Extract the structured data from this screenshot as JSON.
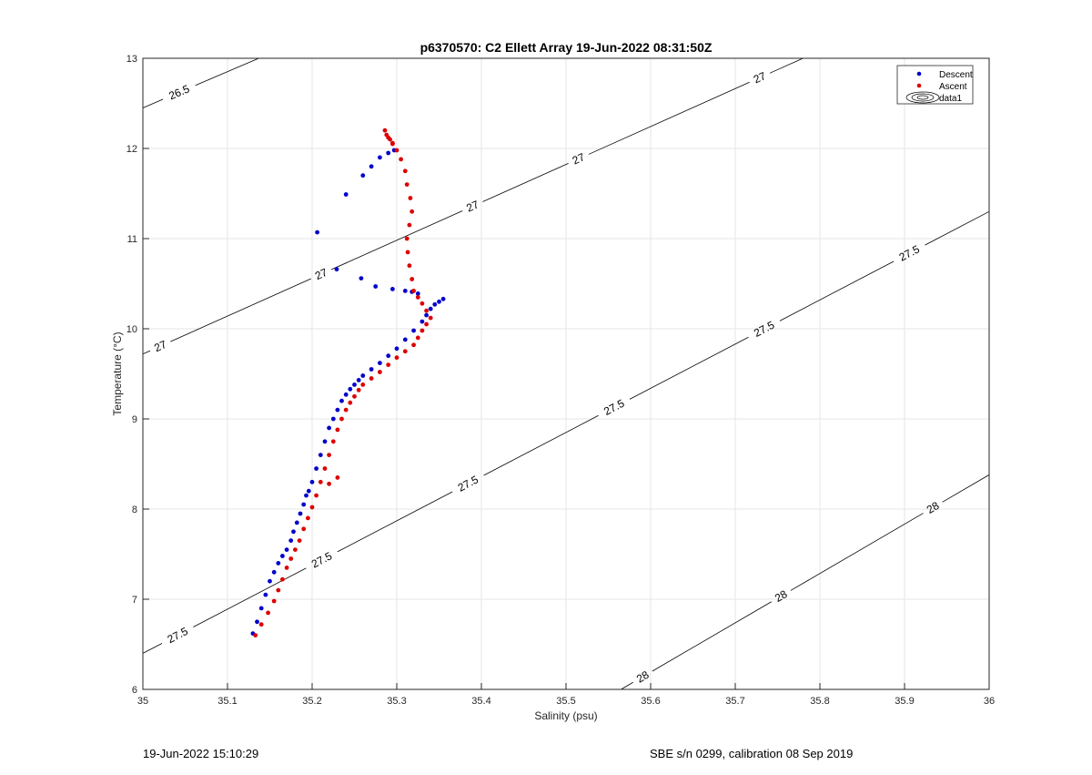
{
  "chart_data": {
    "type": "scatter",
    "title": "p6370570: C2 Ellett Array 19-Jun-2022 08:31:50Z",
    "xlabel": "Salinity (psu)",
    "ylabel": "Temperature (°C)",
    "xlim": [
      35,
      36
    ],
    "ylim": [
      6,
      13
    ],
    "x_ticks": [
      35,
      35.1,
      35.2,
      35.3,
      35.4,
      35.5,
      35.6,
      35.7,
      35.8,
      35.9,
      36
    ],
    "x_tick_labels": [
      "35",
      "35.1",
      "35.2",
      "35.3",
      "35.4",
      "35.5",
      "35.6",
      "35.7",
      "35.8",
      "35.9",
      "36"
    ],
    "y_ticks": [
      6,
      7,
      8,
      9,
      10,
      11,
      12,
      13
    ],
    "y_tick_labels": [
      "6",
      "7",
      "8",
      "9",
      "10",
      "11",
      "12",
      "13"
    ],
    "grid": true,
    "legend": {
      "position": "top-right",
      "entries": [
        "Descent",
        "Ascent",
        "data1"
      ]
    },
    "series": [
      {
        "name": "Descent",
        "color": "#0000cc",
        "x": [
          35.13,
          35.135,
          35.14,
          35.145,
          35.15,
          35.155,
          35.16,
          35.165,
          35.17,
          35.175,
          35.178,
          35.182,
          35.186,
          35.19,
          35.193,
          35.196,
          35.2,
          35.205,
          35.21,
          35.215,
          35.22,
          35.225,
          35.23,
          35.235,
          35.24,
          35.245,
          35.25,
          35.255,
          35.26,
          35.27,
          35.28,
          35.29,
          35.3,
          35.31,
          35.32,
          35.33,
          35.335,
          35.34,
          35.345,
          35.35,
          35.355,
          35.206,
          35.24,
          35.26,
          35.27,
          35.28,
          35.29,
          35.297,
          35.229,
          35.258,
          35.275,
          35.295,
          35.31,
          35.318,
          35.325
        ],
        "y": [
          6.62,
          6.75,
          6.9,
          7.05,
          7.2,
          7.3,
          7.4,
          7.48,
          7.55,
          7.65,
          7.75,
          7.85,
          7.95,
          8.05,
          8.15,
          8.2,
          8.3,
          8.45,
          8.6,
          8.75,
          8.9,
          9.0,
          9.1,
          9.2,
          9.27,
          9.33,
          9.38,
          9.43,
          9.48,
          9.55,
          9.62,
          9.7,
          9.78,
          9.88,
          9.98,
          10.08,
          10.15,
          10.22,
          10.27,
          10.3,
          10.33,
          11.07,
          11.49,
          11.7,
          11.8,
          11.9,
          11.95,
          11.98,
          10.66,
          10.56,
          10.47,
          10.44,
          10.42,
          10.41,
          10.39
        ]
      },
      {
        "name": "Ascent",
        "color": "#dd0000",
        "x": [
          35.133,
          35.14,
          35.148,
          35.155,
          35.16,
          35.165,
          35.17,
          35.175,
          35.18,
          35.185,
          35.19,
          35.195,
          35.2,
          35.205,
          35.21,
          35.215,
          35.22,
          35.225,
          35.23,
          35.235,
          35.24,
          35.245,
          35.25,
          35.255,
          35.26,
          35.27,
          35.28,
          35.29,
          35.3,
          35.31,
          35.32,
          35.325,
          35.33,
          35.335,
          35.34,
          35.335,
          35.33,
          35.325,
          35.32,
          35.318,
          35.315,
          35.313,
          35.312,
          35.315,
          35.318,
          35.316,
          35.312,
          35.31,
          35.305,
          35.3,
          35.295,
          35.292,
          35.288,
          35.286,
          35.29,
          35.295,
          35.23,
          35.22
        ],
        "y": [
          6.6,
          6.72,
          6.85,
          6.98,
          7.1,
          7.22,
          7.35,
          7.45,
          7.55,
          7.65,
          7.78,
          7.9,
          8.02,
          8.15,
          8.3,
          8.45,
          8.6,
          8.75,
          8.88,
          9.0,
          9.1,
          9.18,
          9.25,
          9.32,
          9.38,
          9.45,
          9.52,
          9.6,
          9.68,
          9.75,
          9.82,
          9.9,
          9.98,
          10.05,
          10.12,
          10.2,
          10.28,
          10.35,
          10.42,
          10.55,
          10.7,
          10.85,
          11.0,
          11.15,
          11.3,
          11.45,
          11.6,
          11.75,
          11.88,
          11.98,
          12.05,
          12.1,
          12.15,
          12.2,
          12.12,
          12.06,
          8.35,
          8.28
        ]
      }
    ],
    "contours": [
      {
        "value": 26.5,
        "x0": 35,
        "y0": 12.45,
        "x1": 35.137,
        "y1": 13.0,
        "labels": [
          {
            "text": "26.5",
            "x": 35.043,
            "y": 12.62
          }
        ]
      },
      {
        "value": 27,
        "x0": 35,
        "y0": 9.72,
        "x1": 35.78,
        "y1": 13.0,
        "labels": [
          {
            "text": "27",
            "x": 35.02,
            "y": 9.82
          },
          {
            "text": "27",
            "x": 35.21,
            "y": 10.62
          },
          {
            "text": "27",
            "x": 35.39,
            "y": 11.35
          },
          {
            "text": "27",
            "x": 35.505,
            "y": 12.09
          },
          {
            "text": "27",
            "x": 35.73,
            "y": 12.76
          }
        ]
      },
      {
        "value": 27.5,
        "x0": 35,
        "y0": 6.4,
        "x1": 36,
        "y1": 11.3,
        "labels": [
          {
            "text": "27.5",
            "x": 35.04,
            "y": 6.62
          },
          {
            "text": "27.5",
            "x": 35.205,
            "y": 7.55
          },
          {
            "text": "27.5",
            "x": 35.375,
            "y": 8.45
          },
          {
            "text": "27.5",
            "x": 35.55,
            "y": 9.25
          },
          {
            "text": "27.5",
            "x": 35.73,
            "y": 10.07
          },
          {
            "text": "27.5",
            "x": 35.905,
            "y": 10.85
          }
        ]
      },
      {
        "value": 28,
        "x0": 35.565,
        "y0": 6.0,
        "x1": 36,
        "y1": 8.38,
        "labels": [
          {
            "text": "28",
            "x": 35.59,
            "y": 6.15
          },
          {
            "text": "28",
            "x": 35.75,
            "y": 7.1
          },
          {
            "text": "28",
            "x": 35.935,
            "y": 7.99
          }
        ]
      }
    ]
  },
  "footer": {
    "timestamp": "19-Jun-2022 15:10:29",
    "calibration": "SBE s/n 0299, calibration 08 Sep 2019"
  }
}
